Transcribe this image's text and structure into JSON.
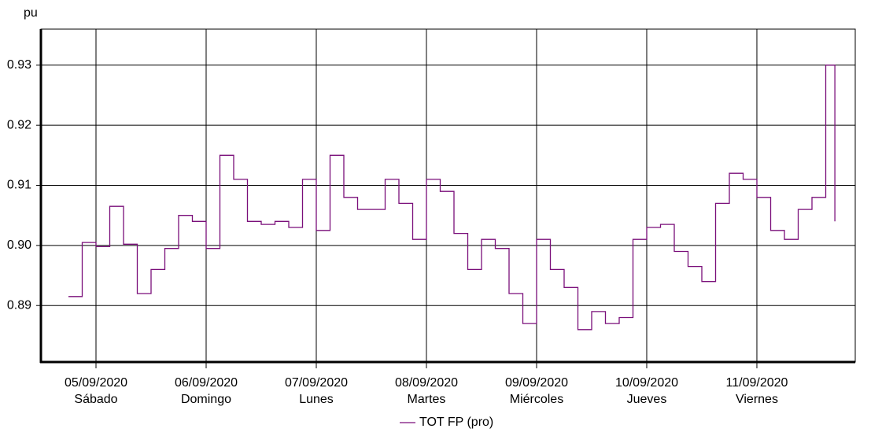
{
  "chart_data": {
    "type": "line",
    "y_label": "pu",
    "x": [
      "2020-09-04T18:00",
      "2020-09-04T21:00",
      "2020-09-05T00:00",
      "2020-09-05T03:00",
      "2020-09-05T06:00",
      "2020-09-05T09:00",
      "2020-09-05T12:00",
      "2020-09-05T15:00",
      "2020-09-05T18:00",
      "2020-09-05T21:00",
      "2020-09-06T00:00",
      "2020-09-06T03:00",
      "2020-09-06T06:00",
      "2020-09-06T09:00",
      "2020-09-06T12:00",
      "2020-09-06T15:00",
      "2020-09-06T18:00",
      "2020-09-06T21:00",
      "2020-09-07T00:00",
      "2020-09-07T03:00",
      "2020-09-07T06:00",
      "2020-09-07T09:00",
      "2020-09-07T12:00",
      "2020-09-07T15:00",
      "2020-09-07T18:00",
      "2020-09-07T21:00",
      "2020-09-08T00:00",
      "2020-09-08T03:00",
      "2020-09-08T06:00",
      "2020-09-08T09:00",
      "2020-09-08T12:00",
      "2020-09-08T15:00",
      "2020-09-08T18:00",
      "2020-09-08T21:00",
      "2020-09-09T00:00",
      "2020-09-09T03:00",
      "2020-09-09T06:00",
      "2020-09-09T09:00",
      "2020-09-09T12:00",
      "2020-09-09T15:00",
      "2020-09-09T18:00",
      "2020-09-09T21:00",
      "2020-09-10T00:00",
      "2020-09-10T03:00",
      "2020-09-10T06:00",
      "2020-09-10T09:00",
      "2020-09-10T12:00",
      "2020-09-10T15:00",
      "2020-09-10T18:00",
      "2020-09-10T21:00",
      "2020-09-11T00:00",
      "2020-09-11T03:00",
      "2020-09-11T06:00",
      "2020-09-11T09:00",
      "2020-09-11T12:00",
      "2020-09-11T15:00",
      "2020-09-11T17:00"
    ],
    "series": [
      {
        "name": "TOT FP (pro)",
        "color": "#7a0f7a",
        "values": [
          0.8915,
          0.9005,
          0.8998,
          0.9065,
          0.9002,
          0.892,
          0.896,
          0.8995,
          0.905,
          0.904,
          0.8995,
          0.915,
          0.911,
          0.904,
          0.9035,
          0.904,
          0.903,
          0.911,
          0.9025,
          0.915,
          0.908,
          0.906,
          0.906,
          0.911,
          0.907,
          0.901,
          0.911,
          0.909,
          0.902,
          0.896,
          0.901,
          0.8995,
          0.892,
          0.887,
          0.901,
          0.896,
          0.893,
          0.886,
          0.889,
          0.887,
          0.888,
          0.901,
          0.903,
          0.9035,
          0.899,
          0.8965,
          0.894,
          0.907,
          0.912,
          0.911,
          0.908,
          0.9025,
          0.901,
          0.906,
          0.908,
          0.93,
          0.904
        ]
      }
    ],
    "xlim": [
      "2020-09-04T12:00",
      "2020-09-11T21:26"
    ],
    "xticks": [
      {
        "value": "2020-09-05T00:00",
        "label": "05/09/2020"
      },
      {
        "value": "2020-09-06T00:00",
        "label": "06/09/2020"
      },
      {
        "value": "2020-09-07T00:00",
        "label": "07/09/2020"
      },
      {
        "value": "2020-09-08T00:00",
        "label": "08/09/2020"
      },
      {
        "value": "2020-09-09T00:00",
        "label": "09/09/2020"
      },
      {
        "value": "2020-09-10T00:00",
        "label": "10/09/2020"
      },
      {
        "value": "2020-09-11T00:00",
        "label": "11/09/2020"
      }
    ],
    "xtick_weekdays": [
      "Sábado",
      "Domingo",
      "Lunes",
      "Martes",
      "Miércoles",
      "Jueves",
      "Viernes"
    ],
    "ylim": [
      0.8806,
      0.936
    ],
    "yticks": [
      0.89,
      0.9,
      0.91,
      0.92,
      0.93
    ],
    "ytick_labels": [
      "0.89",
      "0.90",
      "0.91",
      "0.92",
      "0.93"
    ],
    "grid": true,
    "legend": "bottom"
  }
}
